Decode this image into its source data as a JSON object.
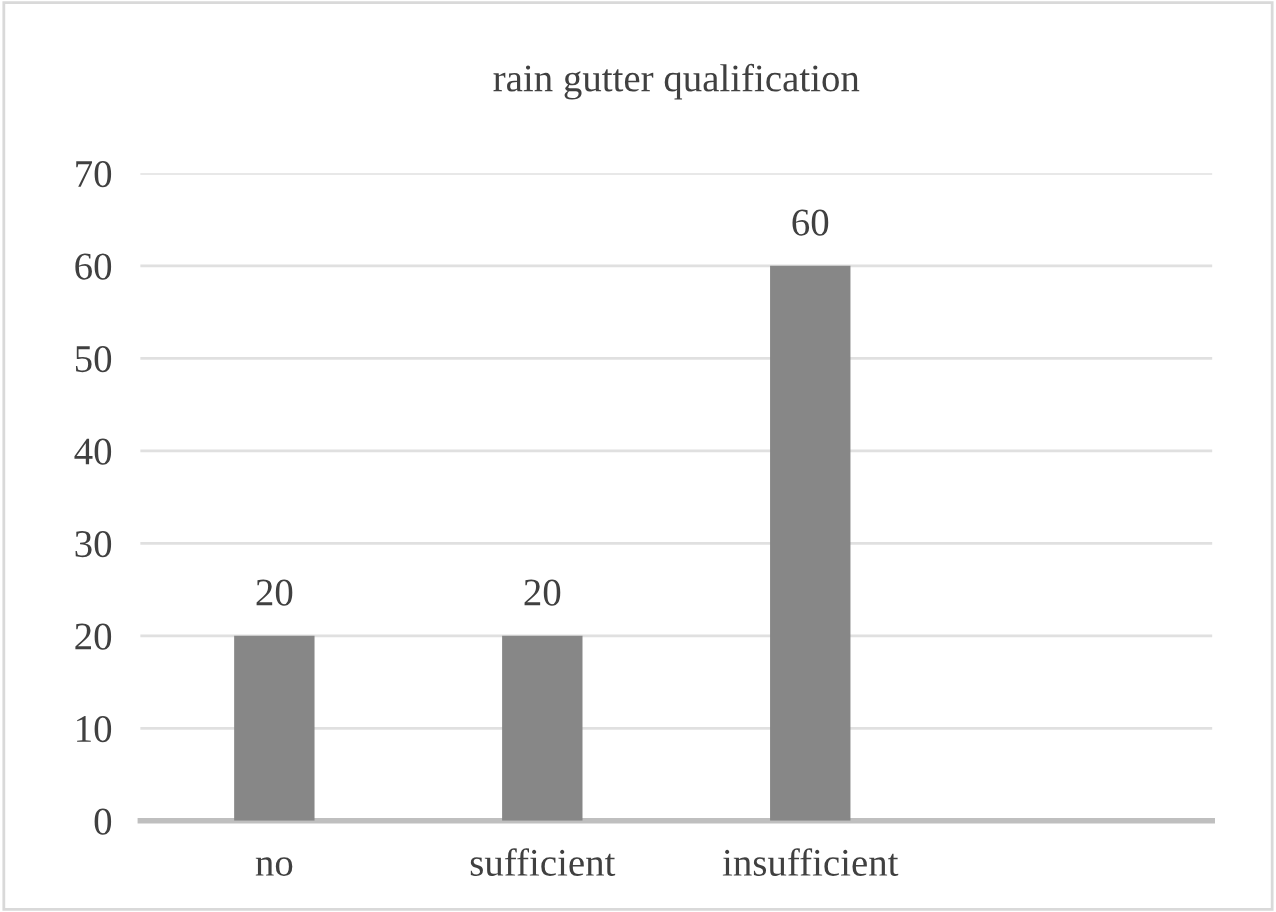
{
  "chart_data": {
    "type": "bar",
    "title": "rain gutter qualification",
    "categories": [
      "no",
      "sufficient",
      "insufficient",
      null
    ],
    "values": [
      20,
      20,
      60,
      null
    ],
    "color": "#878787",
    "ylim": [
      0,
      70
    ],
    "yticks": [
      0,
      10,
      20,
      30,
      40,
      50,
      60,
      70
    ],
    "grid": "y",
    "data_labels": true
  }
}
